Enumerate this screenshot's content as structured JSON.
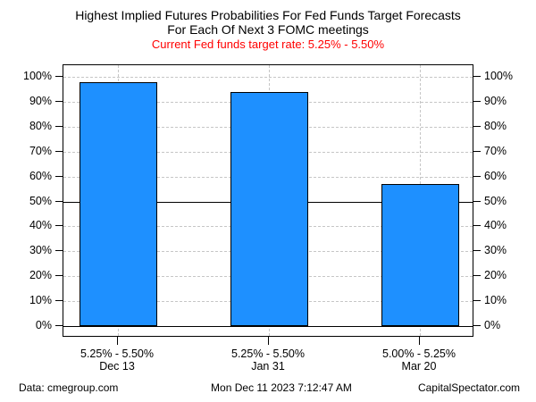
{
  "figure": {
    "title_line1": "Highest Implied Futures Probabilities For Fed Funds Target Forecasts",
    "title_line2": "For Each Of Next 3 FOMC meetings",
    "subtitle": "Current Fed funds target rate: 5.25% - 5.50%",
    "subtitle_color": "#ff0000"
  },
  "footer": {
    "source": "Data: cmegroup.com",
    "timestamp": "Mon Dec 11 2023 7:12:47 AM",
    "site": "CapitalSpectator.com"
  },
  "chart_data": {
    "type": "bar",
    "title": "Highest Implied Futures Probabilities For Fed Funds Target Forecasts For Each Of Next 3 FOMC meetings",
    "subtitle": "Current Fed funds target rate: 5.25% - 5.50%",
    "categories": [
      "5.25% - 5.50%",
      "5.25% - 5.50%",
      "5.00% - 5.25%"
    ],
    "category_dates": [
      "Dec 13",
      "Jan 31",
      "Mar 20"
    ],
    "values": [
      98,
      94,
      57
    ],
    "unit": "%",
    "xlabel": "",
    "ylabel": "",
    "ylim": [
      0,
      100
    ],
    "y_ticks": [
      0,
      10,
      20,
      30,
      40,
      50,
      60,
      70,
      80,
      90,
      100
    ],
    "y_tick_suffix": "%",
    "dual_y_axis": true,
    "grid": "dashed",
    "reference_lines": [
      0,
      50
    ],
    "legend": null,
    "bar_color": "#1e90ff",
    "bar_border_color": "#000000",
    "grid_color": "#c6c6c6",
    "text_color": "#000000"
  }
}
